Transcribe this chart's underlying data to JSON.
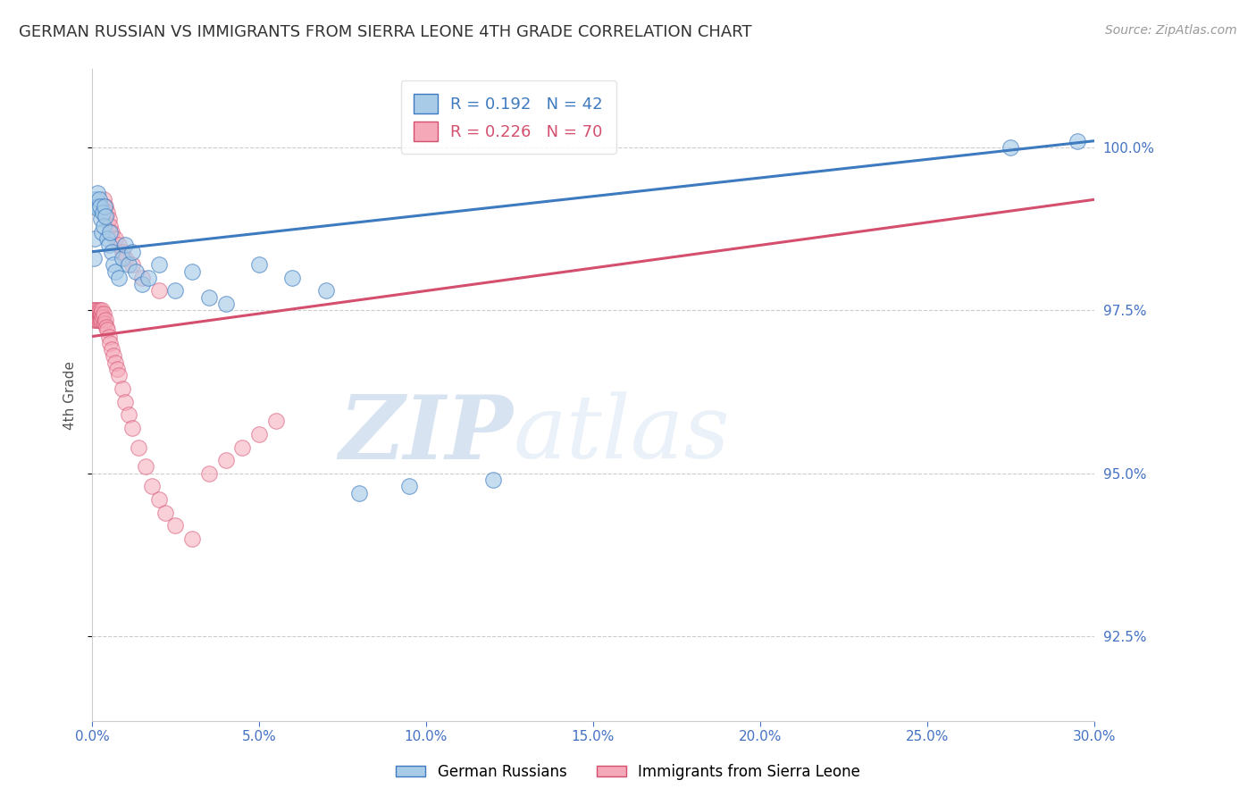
{
  "title": "GERMAN RUSSIAN VS IMMIGRANTS FROM SIERRA LEONE 4TH GRADE CORRELATION CHART",
  "source": "Source: ZipAtlas.com",
  "ylabel": "4th Grade",
  "watermark_zip": "ZIP",
  "watermark_atlas": "atlas",
  "xlim": [
    0.0,
    30.0
  ],
  "ylim": [
    91.2,
    101.2
  ],
  "yticks": [
    92.5,
    95.0,
    97.5,
    100.0
  ],
  "xticks": [
    0.0,
    5.0,
    10.0,
    15.0,
    20.0,
    25.0,
    30.0
  ],
  "blue_R": 0.192,
  "blue_N": 42,
  "pink_R": 0.226,
  "pink_N": 70,
  "blue_color": "#a8cce8",
  "pink_color": "#f5a8b8",
  "blue_line_color": "#3d7abf",
  "pink_line_color": "#d44f6e",
  "legend_blue_label": "German Russians",
  "legend_pink_label": "Immigrants from Sierra Leone",
  "blue_scatter_x": [
    0.05,
    0.08,
    0.1,
    0.12,
    0.15,
    0.18,
    0.2,
    0.22,
    0.25,
    0.28,
    0.3,
    0.32,
    0.35,
    0.38,
    0.4,
    0.45,
    0.5,
    0.55,
    0.6,
    0.65,
    0.7,
    0.8,
    0.9,
    1.0,
    1.1,
    1.2,
    1.3,
    1.5,
    1.7,
    2.0,
    2.5,
    3.0,
    3.5,
    4.0,
    5.0,
    6.0,
    7.0,
    8.0,
    9.5,
    12.0,
    27.5,
    29.5
  ],
  "blue_scatter_y": [
    98.3,
    98.6,
    99.1,
    99.2,
    99.3,
    99.1,
    99.05,
    99.2,
    99.1,
    98.9,
    98.7,
    99.0,
    98.8,
    99.1,
    98.95,
    98.6,
    98.5,
    98.7,
    98.4,
    98.2,
    98.1,
    98.0,
    98.3,
    98.5,
    98.2,
    98.4,
    98.1,
    97.9,
    98.0,
    98.2,
    97.8,
    98.1,
    97.7,
    97.6,
    98.2,
    98.0,
    97.8,
    94.7,
    94.8,
    94.9,
    100.0,
    100.1
  ],
  "pink_scatter_x": [
    0.02,
    0.03,
    0.04,
    0.05,
    0.06,
    0.07,
    0.08,
    0.09,
    0.1,
    0.11,
    0.12,
    0.13,
    0.14,
    0.15,
    0.16,
    0.17,
    0.18,
    0.19,
    0.2,
    0.21,
    0.22,
    0.23,
    0.24,
    0.25,
    0.26,
    0.27,
    0.28,
    0.3,
    0.32,
    0.35,
    0.38,
    0.4,
    0.42,
    0.45,
    0.5,
    0.55,
    0.6,
    0.65,
    0.7,
    0.75,
    0.8,
    0.9,
    1.0,
    1.1,
    1.2,
    1.4,
    1.6,
    1.8,
    2.0,
    2.2,
    2.5,
    3.0,
    3.5,
    4.0,
    4.5,
    5.0,
    5.5,
    0.35,
    0.4,
    0.45,
    0.5,
    0.55,
    0.6,
    0.7,
    0.8,
    0.9,
    1.0,
    1.2,
    1.5,
    2.0
  ],
  "pink_scatter_y": [
    97.4,
    97.5,
    97.45,
    97.4,
    97.35,
    97.5,
    97.45,
    97.4,
    97.35,
    97.5,
    97.45,
    97.4,
    97.35,
    97.45,
    97.4,
    97.35,
    97.4,
    97.45,
    97.5,
    97.4,
    97.35,
    97.4,
    97.45,
    97.5,
    97.4,
    97.35,
    97.45,
    97.5,
    97.4,
    97.45,
    97.3,
    97.35,
    97.25,
    97.2,
    97.1,
    97.0,
    96.9,
    96.8,
    96.7,
    96.6,
    96.5,
    96.3,
    96.1,
    95.9,
    95.7,
    95.4,
    95.1,
    94.8,
    94.6,
    94.4,
    94.2,
    94.0,
    95.0,
    95.2,
    95.4,
    95.6,
    95.8,
    99.2,
    99.1,
    99.0,
    98.9,
    98.8,
    98.7,
    98.6,
    98.5,
    98.4,
    98.3,
    98.2,
    98.0,
    97.8
  ],
  "blue_trend_x": [
    0.0,
    30.0
  ],
  "blue_trend_y": [
    98.4,
    100.1
  ],
  "pink_trend_x": [
    0.0,
    30.0
  ],
  "pink_trend_y": [
    97.1,
    99.2
  ],
  "background_color": "#ffffff",
  "grid_color": "#cccccc",
  "title_fontsize": 13,
  "axis_label_color": "#555555",
  "tick_label_color": "#4472c4"
}
